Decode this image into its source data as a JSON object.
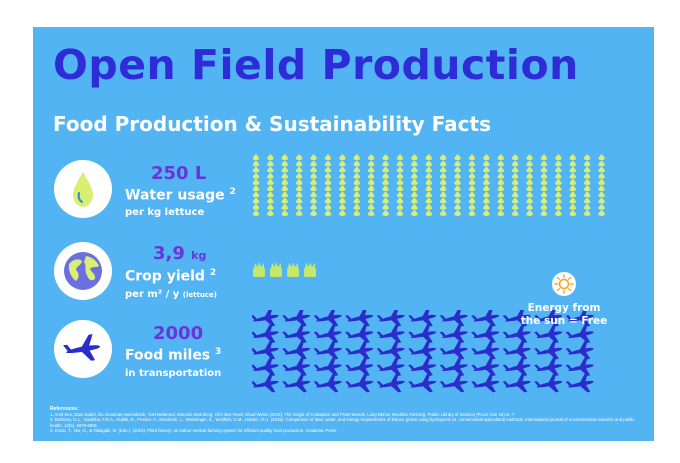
{
  "title": "Open Field Production",
  "subtitle": "Food Production & Sustainability Facts",
  "colors": {
    "background": "#53b4f4",
    "title": "#2d2cd6",
    "figure": "#6a35d8",
    "drop": "#d9ee73",
    "plant": "#c5e86c",
    "plane": "#2b2ccc",
    "sun": "#f5a623"
  },
  "icons": [
    "water-drop-icon",
    "globe-icon",
    "airplane-icon",
    "sun-icon",
    "plant-icon"
  ],
  "facts": [
    {
      "value": "250 L",
      "unit": "",
      "label": "Water usage",
      "ref": "2",
      "sub": "per kg lettuce",
      "sub_small": ""
    },
    {
      "value": "3,9",
      "unit": "kg",
      "label": "Crop yield",
      "ref": "2",
      "sub": "per m² / y",
      "sub_small": "(lettuce)"
    },
    {
      "value": "2000",
      "unit": "",
      "label": "Food miles",
      "ref": "3",
      "sub": "in transportation",
      "sub_small": ""
    }
  ],
  "energy": {
    "line1": "Energy from",
    "line2": "the sun = Free"
  },
  "pictogram_counts": {
    "drops": 250,
    "plants": 4,
    "planes": 55
  },
  "references": {
    "heading": "References:",
    "items": [
      "1. Amit Sen, Dani Nadel, Ilio Grosman Nemsdorsk, Yoel Melamed, Marcelo Sternberg, Ofer Bar-Yosef, Ehud Weiss (2015). The Origin of Cultivation and Proto-Weeds, Long Before Neolithic Farming. Public Library of Science (PLoS One 10) nr. 7",
      "2. Barbosa, G.L., Gadelha, F.D.A., Kublik, N., Proctor, A., Reichelm, L., Weissinger, E., Wohlleb, G.M., Halden, R.U. (2015). Comparison of land, water, and energy requirements of lettuce grown using hydroponic vs. conventional agricultural methods. International journal of environmental research and public health, 12(6), 6879-6891",
      "3. Kozai, T., Niu, G., & Takagaki, M. (Eds.). (2015). Plant factory: an indoor vertical farming system for efficient quality food production. Academic Press"
    ]
  }
}
